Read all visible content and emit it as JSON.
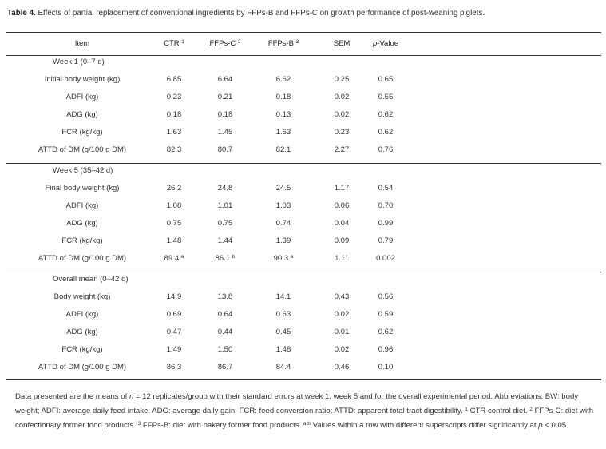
{
  "title": {
    "label": "Table 4.",
    "text": " Effects of partial replacement of conventional ingredients by FFPs-B and FFPs-C on growth performance of post-weaning piglets."
  },
  "headers": [
    {
      "text": "Item",
      "sup": ""
    },
    {
      "text": "CTR ",
      "sup": "1"
    },
    {
      "text": "FFPs-C ",
      "sup": "2"
    },
    {
      "text": "FFPs-B ",
      "sup": "3"
    },
    {
      "text": "SEM",
      "sup": ""
    },
    {
      "text": "p",
      "suffix": "-Value"
    }
  ],
  "groups": [
    {
      "label": "Week 1 (0–7 d)",
      "rows": [
        {
          "item": "Initial body weight (kg)",
          "vals": [
            [
              "6.85",
              ""
            ],
            [
              "6.64",
              ""
            ],
            [
              "6.62",
              ""
            ],
            [
              "0.25",
              ""
            ],
            [
              "0.65",
              ""
            ]
          ]
        },
        {
          "item": "ADFI (kg)",
          "vals": [
            [
              "0.23",
              ""
            ],
            [
              "0.21",
              ""
            ],
            [
              "0.18",
              ""
            ],
            [
              "0.02",
              ""
            ],
            [
              "0.55",
              ""
            ]
          ]
        },
        {
          "item": "ADG (kg)",
          "vals": [
            [
              "0.18",
              ""
            ],
            [
              "0.18",
              ""
            ],
            [
              "0.13",
              ""
            ],
            [
              "0.02",
              ""
            ],
            [
              "0.62",
              ""
            ]
          ]
        },
        {
          "item": "FCR (kg/kg)",
          "vals": [
            [
              "1.63",
              ""
            ],
            [
              "1.45",
              ""
            ],
            [
              "1.63",
              ""
            ],
            [
              "0.23",
              ""
            ],
            [
              "0.62",
              ""
            ]
          ]
        },
        {
          "item": "ATTD of DM (g/100 g DM)",
          "vals": [
            [
              "82.3",
              ""
            ],
            [
              "80.7",
              ""
            ],
            [
              "82.1",
              ""
            ],
            [
              "2.27",
              ""
            ],
            [
              "0.76",
              ""
            ]
          ]
        }
      ]
    },
    {
      "label": "Week 5 (35–42 d)",
      "rows": [
        {
          "item": "Final body weight (kg)",
          "vals": [
            [
              "26.2",
              ""
            ],
            [
              "24.8",
              ""
            ],
            [
              "24.5",
              ""
            ],
            [
              "1.17",
              ""
            ],
            [
              "0.54",
              ""
            ]
          ]
        },
        {
          "item": "ADFI (kg)",
          "vals": [
            [
              "1.08",
              ""
            ],
            [
              "1.01",
              ""
            ],
            [
              "1.03",
              ""
            ],
            [
              "0.06",
              ""
            ],
            [
              "0.70",
              ""
            ]
          ]
        },
        {
          "item": "ADG (kg)",
          "vals": [
            [
              "0.75",
              ""
            ],
            [
              "0.75",
              ""
            ],
            [
              "0.74",
              ""
            ],
            [
              "0.04",
              ""
            ],
            [
              "0.99",
              ""
            ]
          ]
        },
        {
          "item": "FCR (kg/kg)",
          "vals": [
            [
              "1.48",
              ""
            ],
            [
              "1.44",
              ""
            ],
            [
              "1.39",
              ""
            ],
            [
              "0.09",
              ""
            ],
            [
              "0.79",
              ""
            ]
          ]
        },
        {
          "item": "ATTD of DM (g/100 g DM)",
          "vals": [
            [
              "89.4 ",
              "a"
            ],
            [
              "86.1 ",
              "b"
            ],
            [
              "90.3 ",
              "a"
            ],
            [
              "1.11",
              ""
            ],
            [
              "0.002",
              ""
            ]
          ]
        }
      ]
    },
    {
      "label": "Overall mean (0–42 d)",
      "rows": [
        {
          "item": "Body weight (kg)",
          "vals": [
            [
              "14.9",
              ""
            ],
            [
              "13.8",
              ""
            ],
            [
              "14.1",
              ""
            ],
            [
              "0.43",
              ""
            ],
            [
              "0.56",
              ""
            ]
          ]
        },
        {
          "item": "ADFI (kg)",
          "vals": [
            [
              "0.69",
              ""
            ],
            [
              "0.64",
              ""
            ],
            [
              "0.63",
              ""
            ],
            [
              "0.02",
              ""
            ],
            [
              "0.59",
              ""
            ]
          ]
        },
        {
          "item": "ADG (kg)",
          "vals": [
            [
              "0.47",
              ""
            ],
            [
              "0.44",
              ""
            ],
            [
              "0.45",
              ""
            ],
            [
              "0.01",
              ""
            ],
            [
              "0.62",
              ""
            ]
          ]
        },
        {
          "item": "FCR (kg/kg)",
          "vals": [
            [
              "1.49",
              ""
            ],
            [
              "1.50",
              ""
            ],
            [
              "1.48",
              ""
            ],
            [
              "0.02",
              ""
            ],
            [
              "0.96",
              ""
            ]
          ]
        },
        {
          "item": "ATTD of DM (g/100 g DM)",
          "vals": [
            [
              "86.3",
              ""
            ],
            [
              "86.7",
              ""
            ],
            [
              "84.4",
              ""
            ],
            [
              "0.46",
              ""
            ],
            [
              "0.10",
              ""
            ]
          ]
        }
      ]
    }
  ],
  "footnote": {
    "p1a": "Data presented are the means of ",
    "n": "n",
    "p1b": " = 12 replicates/group with their standard errors at week 1, week 5 and for the overall experimental period. Abbreviations: BW: body weight; ADFI: average daily feed intake; ADG: average daily gain; FCR: feed conversion ratio; ATTD: apparent total tract digestibility. ",
    "s1": "1",
    "t1": " CTR control diet. ",
    "s2": "2",
    "t2": " FFPs-C: diet with confectionary former food products. ",
    "s3": "3",
    "t3": " FFPs-B: diet with bakery former food products. ",
    "sab": "a,b",
    "t4": " Values within a row with different superscripts differ significantly at ",
    "p": "p",
    "t5": " < 0.05."
  }
}
